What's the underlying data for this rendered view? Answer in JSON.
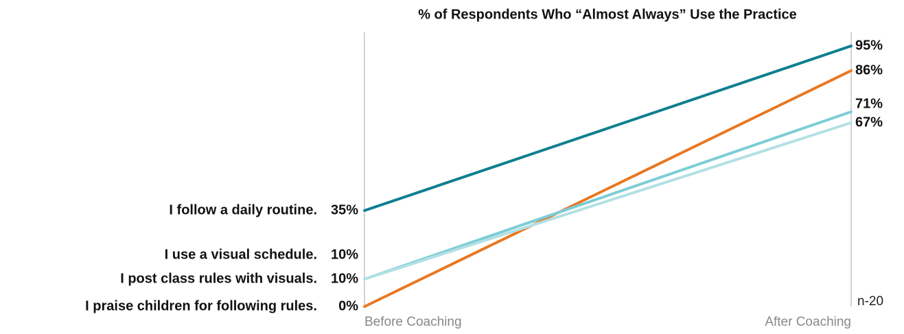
{
  "chart_data": {
    "type": "slope",
    "title": "% of Respondents Who “Almost Always” Use the Practice",
    "categories": [
      "Before Coaching",
      "After Coaching"
    ],
    "series": [
      {
        "name": "I follow a daily routine.",
        "color": "#0e7f8f",
        "values": [
          35,
          95
        ],
        "value_labels": [
          "35%",
          "95%"
        ]
      },
      {
        "name": "I praise children for following rules.",
        "color": "#e87722",
        "values": [
          0,
          86
        ],
        "value_labels": [
          "0%",
          "86%"
        ]
      },
      {
        "name": "I use a visual schedule.",
        "color": "#7ccdd6",
        "values": [
          10,
          71
        ],
        "value_labels": [
          "10%",
          "71%"
        ]
      },
      {
        "name": "I post class rules with visuals.",
        "color": "#b3e0e4",
        "values": [
          10,
          67
        ],
        "value_labels": [
          "10%",
          "67%"
        ]
      }
    ],
    "annotation": "n-20",
    "ylim": [
      0,
      100
    ]
  }
}
